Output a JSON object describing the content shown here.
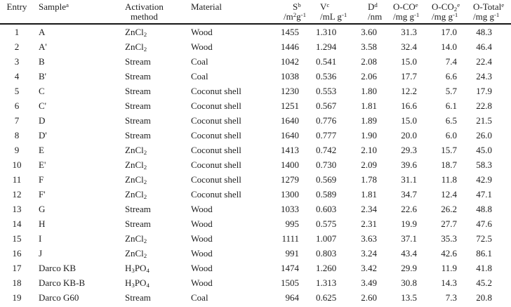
{
  "colors": {
    "background": "#ffffff",
    "text": "#1d1d1d",
    "header_rule": "#161616"
  },
  "table": {
    "columns": [
      {
        "key": "entry",
        "line1": "Entry",
        "line2": "",
        "center_line2": false
      },
      {
        "key": "sample",
        "line1": "Sample^{a}",
        "line2": "",
        "center_line2": false
      },
      {
        "key": "activation",
        "line1": "Activation",
        "line2": "method",
        "center_line2": true
      },
      {
        "key": "material",
        "line1": "Material",
        "line2": "",
        "center_line2": false
      },
      {
        "key": "s",
        "line1": "S^{b}",
        "line2": "/m^{2}g^{-1}",
        "center_line2": false
      },
      {
        "key": "v",
        "line1": "V^{c}",
        "line2": "/mL g^{-1}",
        "center_line2": false
      },
      {
        "key": "d",
        "line1": "D^{d}",
        "line2": "/nm",
        "center_line2": false
      },
      {
        "key": "o_co",
        "line1": "O-CO^{e}",
        "line2": "/mg g^{-1}",
        "center_line2": false
      },
      {
        "key": "o_co2",
        "line1": "O-CO_{2}^{e}",
        "line2": "/mg g^{-1}",
        "center_line2": false
      },
      {
        "key": "o_total",
        "line1": "O-Total^{e}",
        "line2": "/mg g^{-1}",
        "center_line2": false
      }
    ],
    "rows": [
      [
        "1",
        "A",
        "ZnCl_{2}",
        "Wood",
        "1455",
        "1.310",
        "3.60",
        "31.3",
        "17.0",
        "48.3"
      ],
      [
        "2",
        "A'",
        "ZnCl_{2}",
        "Wood",
        "1446",
        "1.294",
        "3.58",
        "32.4",
        "14.0",
        "46.4"
      ],
      [
        "3",
        "B",
        "Stream",
        "Coal",
        "1042",
        "0.541",
        "2.08",
        "15.0",
        "7.4",
        "22.4"
      ],
      [
        "4",
        "B'",
        "Stream",
        "Coal",
        "1038",
        "0.536",
        "2.06",
        "17.7",
        "6.6",
        "24.3"
      ],
      [
        "5",
        "C",
        "Stream",
        "Coconut shell",
        "1230",
        "0.553",
        "1.80",
        "12.2",
        "5.7",
        "17.9"
      ],
      [
        "6",
        "C'",
        "Stream",
        "Coconut shell",
        "1251",
        "0.567",
        "1.81",
        "16.6",
        "6.1",
        "22.8"
      ],
      [
        "7",
        "D",
        "Stream",
        "Coconut shell",
        "1640",
        "0.776",
        "1.89",
        "15.0",
        "6.5",
        "21.5"
      ],
      [
        "8",
        "D'",
        "Stream",
        "Coconut shell",
        "1640",
        "0.777",
        "1.90",
        "20.0",
        "6.0",
        "26.0"
      ],
      [
        "9",
        "E",
        "ZnCl_{2}",
        "Coconut shell",
        "1413",
        "0.742",
        "2.10",
        "29.3",
        "15.7",
        "45.0"
      ],
      [
        "10",
        "E'",
        "ZnCl_{2}",
        "Coconut shell",
        "1400",
        "0.730",
        "2.09",
        "39.6",
        "18.7",
        "58.3"
      ],
      [
        "11",
        "F",
        "ZnCl_{2}",
        "Coconut shell",
        "1279",
        "0.569",
        "1.78",
        "31.1",
        "11.8",
        "42.9"
      ],
      [
        "12",
        "F'",
        "ZnCl_{2}",
        "Coconut shell",
        "1300",
        "0.589",
        "1.81",
        "34.7",
        "12.4",
        "47.1"
      ],
      [
        "13",
        "G",
        "Stream",
        "Wood",
        "1033",
        "0.603",
        "2.34",
        "22.6",
        "26.2",
        "48.8"
      ],
      [
        "14",
        "H",
        "Stream",
        "Wood",
        "995",
        "0.575",
        "2.31",
        "19.9",
        "27.7",
        "47.6"
      ],
      [
        "15",
        "I",
        "ZnCl_{2}",
        "Wood",
        "1111",
        "1.007",
        "3.63",
        "37.1",
        "35.3",
        "72.5"
      ],
      [
        "16",
        "J",
        "ZnCl_{2}",
        "Wood",
        "991",
        "0.803",
        "3.24",
        "43.4",
        "42.6",
        "86.1"
      ],
      [
        "17",
        "Darco KB",
        "H_{3}PO_{4}",
        "Wood",
        "1474",
        "1.260",
        "3.42",
        "29.9",
        "11.9",
        "41.8"
      ],
      [
        "18",
        "Darco KB-B",
        "H_{3}PO_{4}",
        "Wood",
        "1505",
        "1.313",
        "3.49",
        "30.8",
        "14.3",
        "45.2"
      ],
      [
        "19",
        "Darco G60",
        "Stream",
        "Coal",
        "964",
        "0.625",
        "2.60",
        "13.5",
        "7.3",
        "20.8"
      ]
    ]
  }
}
